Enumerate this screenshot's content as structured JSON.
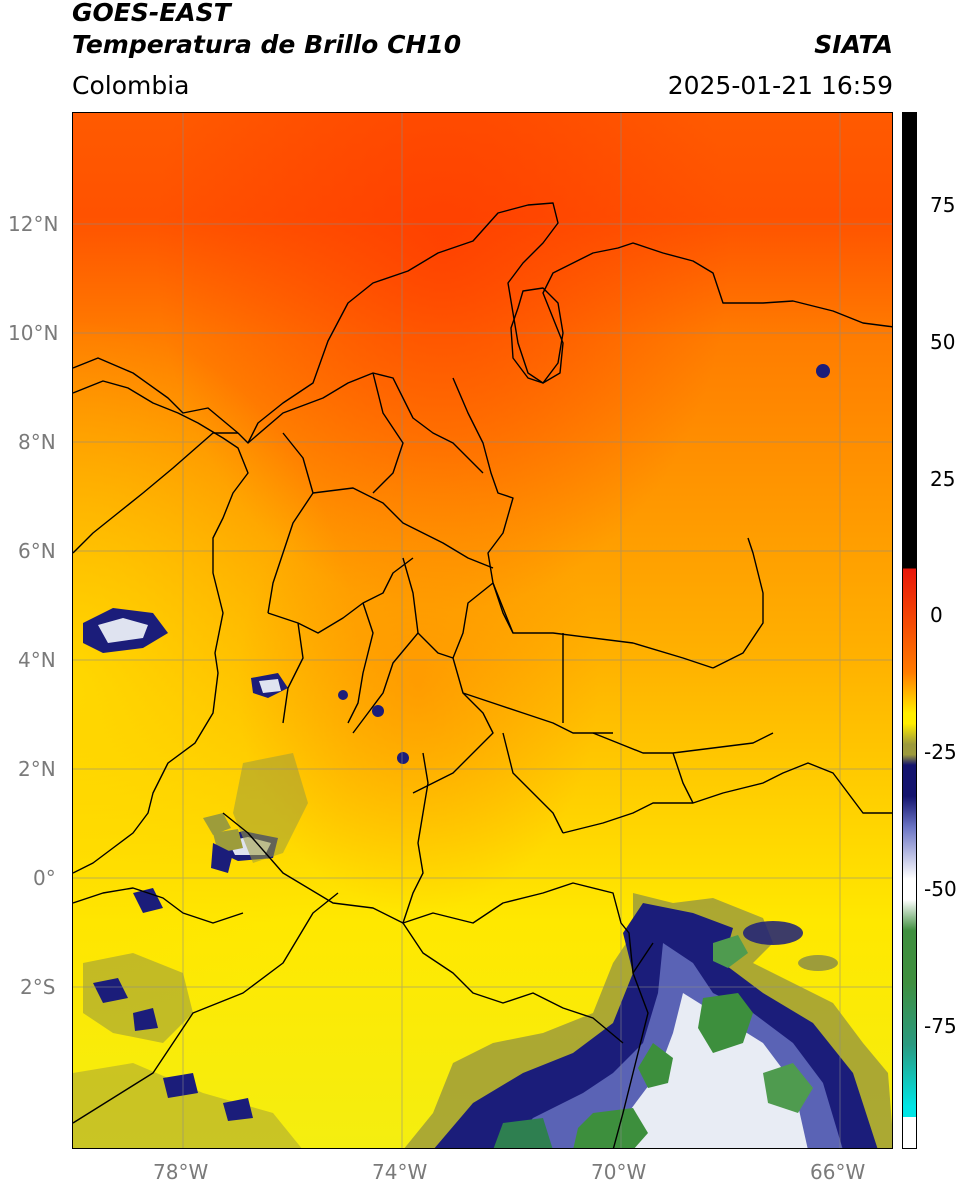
{
  "header": {
    "title_line1": "GOES-EAST",
    "title_line2": "Temperatura de Brillo CH10",
    "region": "Colombia",
    "source": "SIATA",
    "datetime": "2025-01-21 16:59"
  },
  "map": {
    "lat_ticks": [
      "12°N",
      "10°N",
      "8°N",
      "6°N",
      "4°N",
      "2°N",
      "0°",
      "2°S"
    ],
    "lon_ticks": [
      "78°W",
      "74°W",
      "70°W",
      "66°W"
    ]
  },
  "colorbar": {
    "ticks": [
      "75",
      "50",
      "25",
      "0",
      "-25",
      "-50",
      "-75"
    ],
    "colors": {
      "black": "#000000",
      "red": "#e8160a",
      "orange": "#ff7a00",
      "yellow": "#ffee00",
      "olive": "#9c9a3c",
      "navy": "#14146e",
      "white": "#ffffff",
      "green": "#3f8f3f",
      "teal": "#2a9a80",
      "cyan": "#00e5e5"
    }
  }
}
